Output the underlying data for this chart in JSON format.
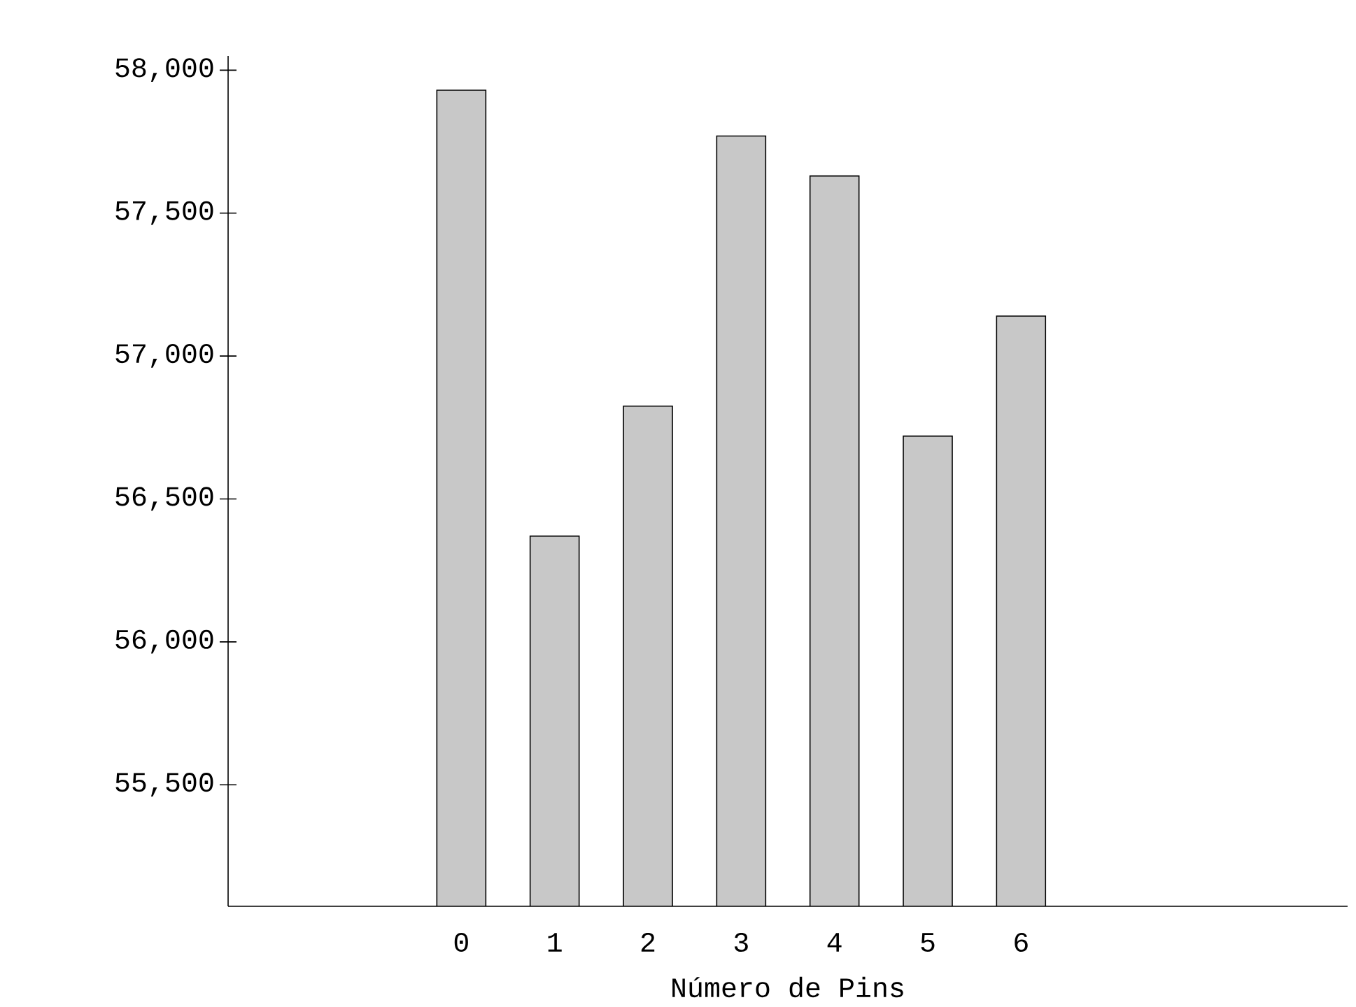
{
  "chart_data": {
    "type": "bar",
    "xlabel": "Número de Pins",
    "categories": [
      null,
      null,
      "0",
      "1",
      "2",
      "3",
      "4",
      "5",
      "6",
      null,
      null,
      null
    ],
    "values": [
      null,
      null,
      57930,
      56370,
      56825,
      57770,
      57630,
      56720,
      57140,
      null,
      null,
      null
    ],
    "color": "#c8c8c8",
    "ylim": [
      55075,
      58050
    ],
    "yticks": [
      {
        "value": 55500,
        "label": "55,500"
      },
      {
        "value": 56000,
        "label": "56,000"
      },
      {
        "value": 56500,
        "label": "56,500"
      },
      {
        "value": 57000,
        "label": "57,000"
      },
      {
        "value": 57500,
        "label": "57,500"
      },
      {
        "value": 58000,
        "label": "58,000"
      }
    ],
    "grid": false
  }
}
